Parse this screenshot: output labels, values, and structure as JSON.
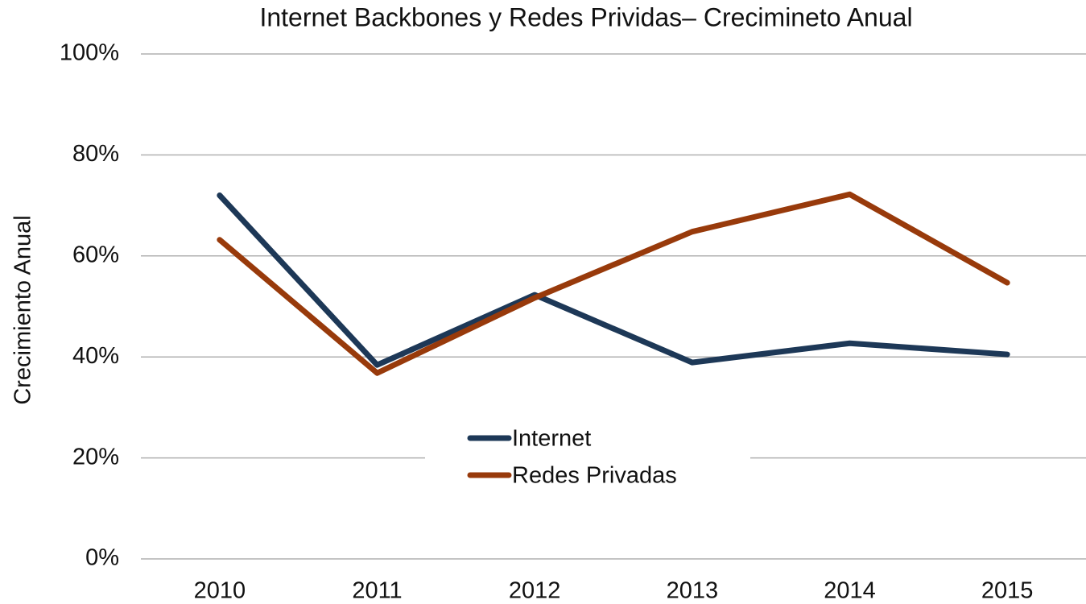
{
  "chart_data": {
    "type": "line",
    "title": "Internet Backbones y Redes Prividas– Crecimineto Anual",
    "y_label": "Crecimiento Anual",
    "categories": [
      "2010",
      "2011",
      "2012",
      "2013",
      "2014",
      "2015"
    ],
    "series": [
      {
        "name": "Internet",
        "color": "#1d3857",
        "values": [
          72,
          38.4,
          52.3,
          38.9,
          42.7,
          40.5
        ]
      },
      {
        "name": "Redes Privadas",
        "color": "#983a0b",
        "values": [
          63.2,
          36.8,
          51.7,
          64.8,
          72.2,
          54.7
        ]
      }
    ],
    "ylim": [
      0,
      100
    ],
    "yticks": [
      {
        "value": 0,
        "label": "0%"
      },
      {
        "value": 20,
        "label": "20%"
      },
      {
        "value": 40,
        "label": "40%"
      },
      {
        "value": 60,
        "label": "60%"
      },
      {
        "value": 80,
        "label": "80%"
      },
      {
        "value": 100,
        "label": "100%"
      }
    ],
    "grid": true,
    "legend": "center"
  }
}
